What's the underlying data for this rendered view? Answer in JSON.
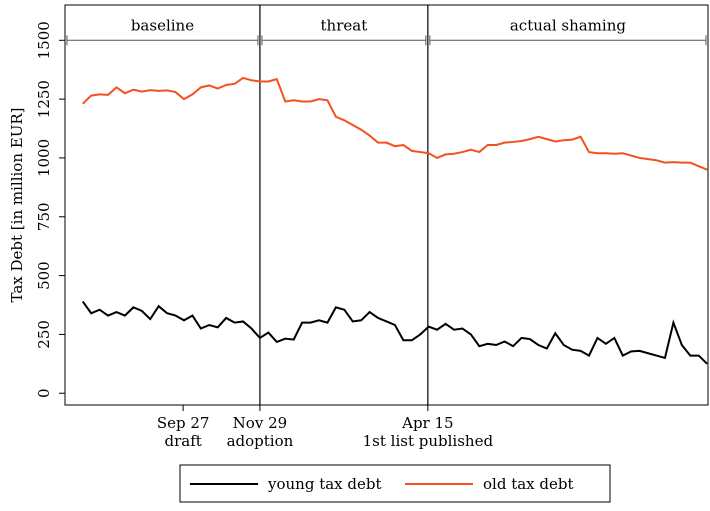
{
  "chart_data": {
    "type": "line",
    "y_label": "Tax Debt [in million EUR]",
    "x": [
      0,
      1,
      2,
      3,
      4,
      5,
      6,
      7,
      8,
      9,
      10,
      11,
      12,
      13,
      14,
      15,
      16,
      17,
      18,
      19,
      20,
      21,
      22,
      23,
      24,
      25,
      26,
      27,
      28,
      29,
      30,
      31,
      32,
      33,
      34,
      35,
      36,
      37,
      38,
      39,
      40,
      41,
      42,
      43,
      44,
      45,
      46,
      47,
      48,
      49,
      50,
      51,
      52,
      53,
      54,
      55,
      56,
      57,
      58,
      59,
      60,
      61,
      62,
      63,
      64,
      65,
      66,
      67,
      68,
      69,
      70,
      71,
      72,
      73,
      74
    ],
    "series": [
      {
        "name": "young tax debt",
        "color": "#000000",
        "values": [
          390,
          340,
          355,
          330,
          345,
          330,
          365,
          350,
          315,
          370,
          340,
          330,
          310,
          330,
          275,
          290,
          280,
          320,
          300,
          305,
          275,
          235,
          258,
          218,
          232,
          228,
          300,
          300,
          310,
          300,
          365,
          355,
          305,
          310,
          345,
          320,
          305,
          290,
          225,
          225,
          250,
          283,
          270,
          295,
          270,
          275,
          250,
          200,
          210,
          205,
          220,
          200,
          235,
          230,
          205,
          190,
          255,
          205,
          185,
          180,
          160,
          235,
          210,
          235,
          160,
          178,
          180,
          170,
          160,
          150,
          300,
          205,
          160,
          160,
          125
        ]
      },
      {
        "name": "old tax debt",
        "color": "#f4511e",
        "values": [
          1230,
          1265,
          1270,
          1268,
          1300,
          1275,
          1290,
          1282,
          1288,
          1285,
          1287,
          1280,
          1250,
          1270,
          1300,
          1308,
          1295,
          1310,
          1315,
          1340,
          1330,
          1325,
          1325,
          1335,
          1240,
          1245,
          1240,
          1240,
          1250,
          1245,
          1175,
          1160,
          1140,
          1120,
          1095,
          1065,
          1065,
          1050,
          1055,
          1030,
          1025,
          1020,
          1000,
          1015,
          1018,
          1025,
          1035,
          1025,
          1055,
          1055,
          1065,
          1068,
          1072,
          1080,
          1090,
          1080,
          1070,
          1075,
          1078,
          1090,
          1025,
          1020,
          1020,
          1018,
          1020,
          1010,
          1000,
          995,
          990,
          980,
          982,
          980,
          980,
          965,
          950
        ]
      }
    ],
    "xlim": [
      -2.1,
      74.1
    ],
    "ylim": [
      -50,
      1650
    ],
    "yticks": [
      0,
      250,
      500,
      750,
      1000,
      1250,
      1500
    ],
    "xticks": [
      {
        "value": 11.9,
        "label": "Sep 27"
      },
      {
        "value": 21,
        "label": "Nov 29"
      },
      {
        "value": 40.9,
        "label": "Apr 15"
      }
    ],
    "xtick_notes": [
      "draft",
      "adoption",
      "1st list published"
    ],
    "vlines": [
      21,
      40.9
    ],
    "phases": [
      {
        "label": "baseline",
        "start": -2.1,
        "end": 21
      },
      {
        "label": "threat",
        "start": 21,
        "end": 40.9
      },
      {
        "label": "actual shaming",
        "start": 40.9,
        "end": 74.1
      }
    ],
    "phase_level": 1500
  }
}
